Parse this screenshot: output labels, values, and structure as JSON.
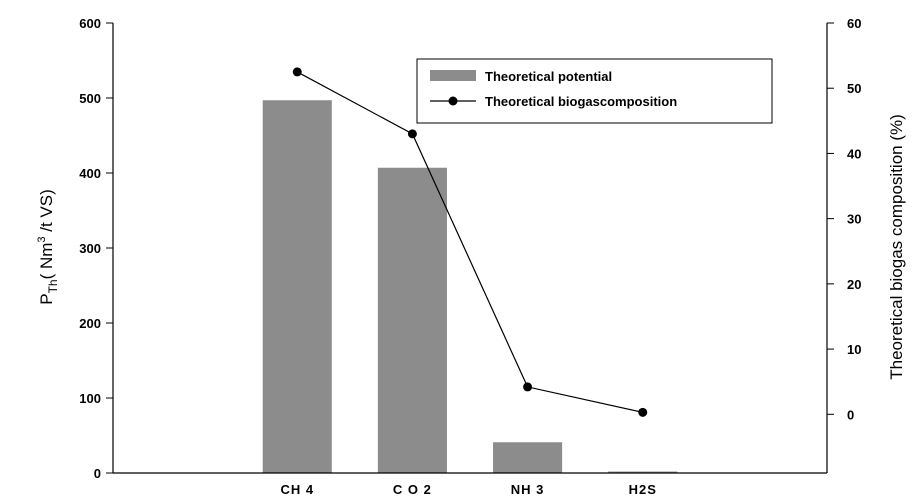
{
  "chart_data": {
    "type": "bar",
    "categories": [
      "CH4",
      "CO2",
      "NH3",
      "H2S"
    ],
    "series": [
      {
        "name": "Theoretical potential",
        "type": "bar",
        "axis": "left",
        "values": [
          497,
          407,
          41,
          2
        ],
        "color": "#8c8c8c"
      },
      {
        "name": "Theoretical biogascomposition",
        "type": "line",
        "axis": "right",
        "values": [
          52.5,
          43,
          4.2,
          0.3
        ],
        "color": "#000000"
      }
    ],
    "ylabel_left": {
      "main": "P",
      "sub": "Th",
      "rest": "( Nm",
      "sup": "3",
      "end": " /t VS)"
    },
    "ylabel_right": "Theoretical biogas composition (%)",
    "ylim_left": [
      0,
      600
    ],
    "yticks_left": [
      0,
      100,
      200,
      300,
      400,
      500,
      600
    ],
    "ylim_right": [
      -9,
      60
    ],
    "yticks_right": [
      0,
      10,
      20,
      30,
      40,
      50,
      60
    ],
    "category_labels": [
      "CH 4",
      "C O 2",
      "NH 3",
      "H2S"
    ],
    "legend_position": "top-right",
    "grid": false
  }
}
